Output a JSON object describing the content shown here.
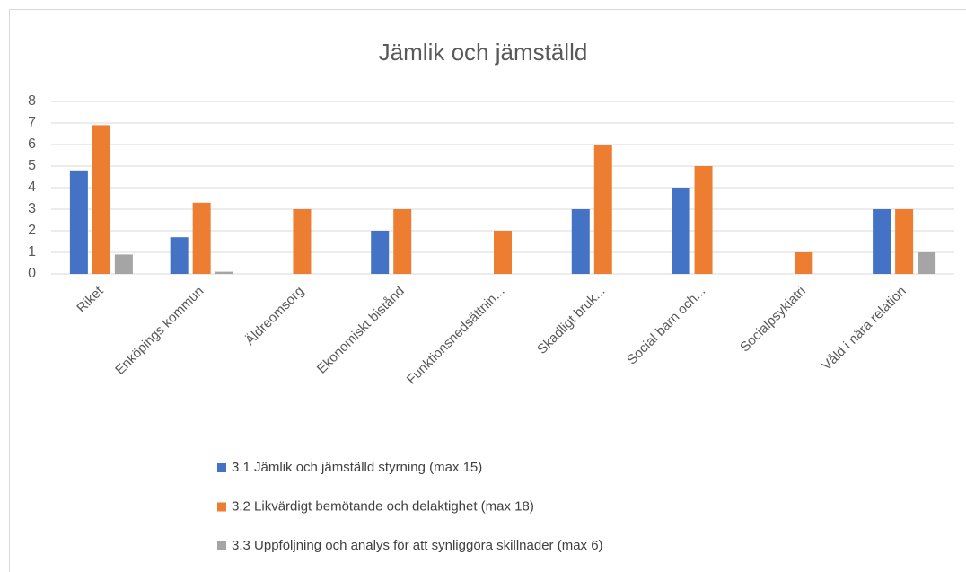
{
  "chart_data": {
    "type": "bar",
    "title": "Jämlik och jämställd",
    "categories": [
      "Riket",
      "Enköpings kommun",
      "Äldreomsorg",
      "Ekonomiskt bistånd",
      "Funktionsnedsättnin...",
      "Skadligt bruk...",
      "Social barn och...",
      "Socialpsykiatri",
      "Våld i nära relation"
    ],
    "series": [
      {
        "name": "3.1 Jämlik och jämställd styrning (max 15)",
        "color": "#4472c4",
        "values": [
          4.8,
          1.7,
          null,
          2,
          null,
          3,
          4,
          null,
          3
        ]
      },
      {
        "name": "3.2 Likvärdigt bemötande och delaktighet (max 18)",
        "color": "#ed7d31",
        "values": [
          6.9,
          3.3,
          3,
          3,
          2,
          6,
          5,
          1,
          3
        ]
      },
      {
        "name": "3.3 Uppföljning och analys för att synliggöra skillnader (max 6)",
        "color": "#a5a5a5",
        "values": [
          0.9,
          0.1,
          null,
          null,
          null,
          null,
          null,
          null,
          1
        ]
      }
    ],
    "ylim": [
      0,
      8
    ],
    "yticks": [
      0,
      1,
      2,
      3,
      4,
      5,
      6,
      7,
      8
    ],
    "grid": true,
    "legend": "bottom"
  }
}
